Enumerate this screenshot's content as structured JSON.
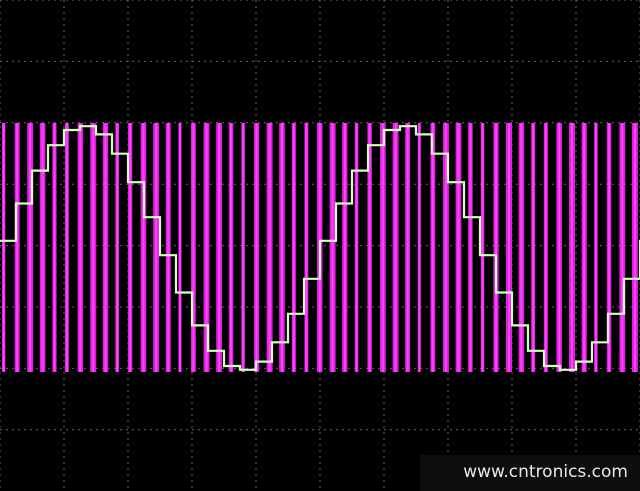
{
  "watermark": "www.cntronics.com"
}
